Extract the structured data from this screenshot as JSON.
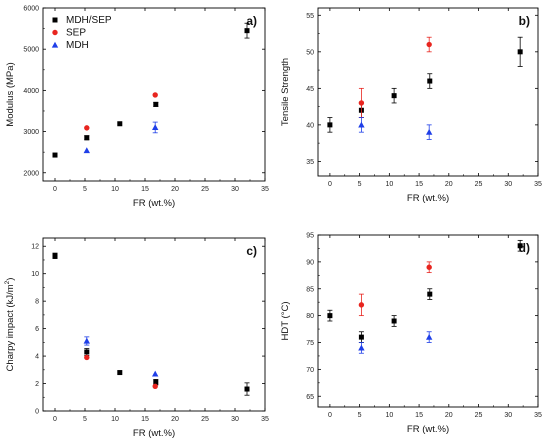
{
  "colors": {
    "MDH/SEP": "#000000",
    "SEP": "#e8251f",
    "MDH": "#1f3fe8",
    "axis": "#000000"
  },
  "legend": {
    "entries": [
      {
        "name": "MDH/SEP",
        "marker": "square"
      },
      {
        "name": "SEP",
        "marker": "circle"
      },
      {
        "name": "MDH",
        "marker": "triangle"
      }
    ]
  },
  "chart_data": [
    {
      "type": "scatter",
      "panel_label": "a)",
      "xlabel": "FR (wt.%)",
      "ylabel": "Modulus (MPa)",
      "xlim": [
        -2,
        35
      ],
      "ylim": [
        1800,
        6000
      ],
      "xticks": [
        0,
        5,
        10,
        15,
        20,
        25,
        30,
        35
      ],
      "yticks": [
        2000,
        3000,
        4000,
        5000,
        6000
      ],
      "legend_position": "top-left",
      "series": [
        {
          "name": "MDH/SEP",
          "marker": "square",
          "points": [
            {
              "x": 0,
              "y": 2430,
              "err": 0
            },
            {
              "x": 5.3,
              "y": 2850,
              "err": 50
            },
            {
              "x": 10.8,
              "y": 3190,
              "err": 0
            },
            {
              "x": 16.8,
              "y": 3660,
              "err": 50
            },
            {
              "x": 32,
              "y": 5450,
              "err": 180
            }
          ]
        },
        {
          "name": "SEP",
          "marker": "circle",
          "points": [
            {
              "x": 5.3,
              "y": 3090,
              "err": 0
            },
            {
              "x": 16.7,
              "y": 3890,
              "err": 0
            }
          ]
        },
        {
          "name": "MDH",
          "marker": "triangle",
          "points": [
            {
              "x": 5.3,
              "y": 2540,
              "err": 0
            },
            {
              "x": 16.7,
              "y": 3100,
              "err": 130
            }
          ]
        }
      ]
    },
    {
      "type": "scatter",
      "panel_label": "b)",
      "xlabel": "FR (wt.%)",
      "ylabel": "Tensile Strength",
      "xlim": [
        -2,
        35
      ],
      "ylim": [
        33,
        56
      ],
      "xticks": [
        0,
        5,
        10,
        15,
        20,
        25,
        30,
        35
      ],
      "yticks": [
        35,
        40,
        45,
        50,
        55
      ],
      "series": [
        {
          "name": "MDH/SEP",
          "marker": "square",
          "points": [
            {
              "x": 0,
              "y": 40,
              "err": 1
            },
            {
              "x": 5.3,
              "y": 42,
              "err": 1
            },
            {
              "x": 10.8,
              "y": 44,
              "err": 1
            },
            {
              "x": 16.8,
              "y": 46,
              "err": 1
            },
            {
              "x": 32,
              "y": 50,
              "err": 2
            }
          ]
        },
        {
          "name": "SEP",
          "marker": "circle",
          "points": [
            {
              "x": 5.3,
              "y": 43,
              "err": 2
            },
            {
              "x": 16.7,
              "y": 51,
              "err": 1
            }
          ]
        },
        {
          "name": "MDH",
          "marker": "triangle",
          "points": [
            {
              "x": 5.3,
              "y": 40,
              "err": 1
            },
            {
              "x": 16.7,
              "y": 39,
              "err": 1
            }
          ]
        }
      ]
    },
    {
      "type": "scatter",
      "panel_label": "c)",
      "xlabel": "FR (wt.%)",
      "ylabel": "Charpy impact (kJ/m",
      "ylabel_superscript": "2",
      "ylabel_suffix": ")",
      "xlim": [
        -2,
        35
      ],
      "ylim": [
        0,
        12.6
      ],
      "xticks": [
        0,
        5,
        10,
        15,
        20,
        25,
        30,
        35
      ],
      "yticks": [
        0,
        2,
        4,
        6,
        8,
        10,
        12
      ],
      "series": [
        {
          "name": "MDH/SEP",
          "marker": "square",
          "points": [
            {
              "x": 0,
              "y": 11.3,
              "err": 0.2
            },
            {
              "x": 5.3,
              "y": 4.3,
              "err": 0.25
            },
            {
              "x": 10.8,
              "y": 2.8,
              "err": 0
            },
            {
              "x": 16.8,
              "y": 2.1,
              "err": 0.2
            },
            {
              "x": 32,
              "y": 1.6,
              "err": 0.45
            }
          ]
        },
        {
          "name": "SEP",
          "marker": "circle",
          "points": [
            {
              "x": 5.3,
              "y": 3.9,
              "err": 0
            },
            {
              "x": 16.7,
              "y": 1.8,
              "err": 0
            }
          ]
        },
        {
          "name": "MDH",
          "marker": "triangle",
          "points": [
            {
              "x": 5.3,
              "y": 5.1,
              "err": 0.3
            },
            {
              "x": 16.7,
              "y": 2.7,
              "err": 0
            }
          ]
        }
      ]
    },
    {
      "type": "scatter",
      "panel_label": "d)",
      "xlabel": "FR (wt.%)",
      "ylabel": "HDT (°C)",
      "xlim": [
        -2,
        35
      ],
      "ylim": [
        63,
        95
      ],
      "xticks": [
        0,
        5,
        10,
        15,
        20,
        25,
        30,
        35
      ],
      "yticks": [
        65,
        70,
        75,
        80,
        85,
        90,
        95
      ],
      "series": [
        {
          "name": "MDH/SEP",
          "marker": "square",
          "points": [
            {
              "x": 0,
              "y": 80,
              "err": 1
            },
            {
              "x": 5.3,
              "y": 76,
              "err": 1
            },
            {
              "x": 10.8,
              "y": 79,
              "err": 1
            },
            {
              "x": 16.8,
              "y": 84,
              "err": 1
            },
            {
              "x": 32,
              "y": 93,
              "err": 1
            }
          ]
        },
        {
          "name": "SEP",
          "marker": "circle",
          "points": [
            {
              "x": 5.3,
              "y": 82,
              "err": 2
            },
            {
              "x": 16.7,
              "y": 89,
              "err": 1
            }
          ]
        },
        {
          "name": "MDH",
          "marker": "triangle",
          "points": [
            {
              "x": 5.3,
              "y": 74,
              "err": 1
            },
            {
              "x": 16.7,
              "y": 76,
              "err": 1
            }
          ]
        }
      ]
    }
  ]
}
